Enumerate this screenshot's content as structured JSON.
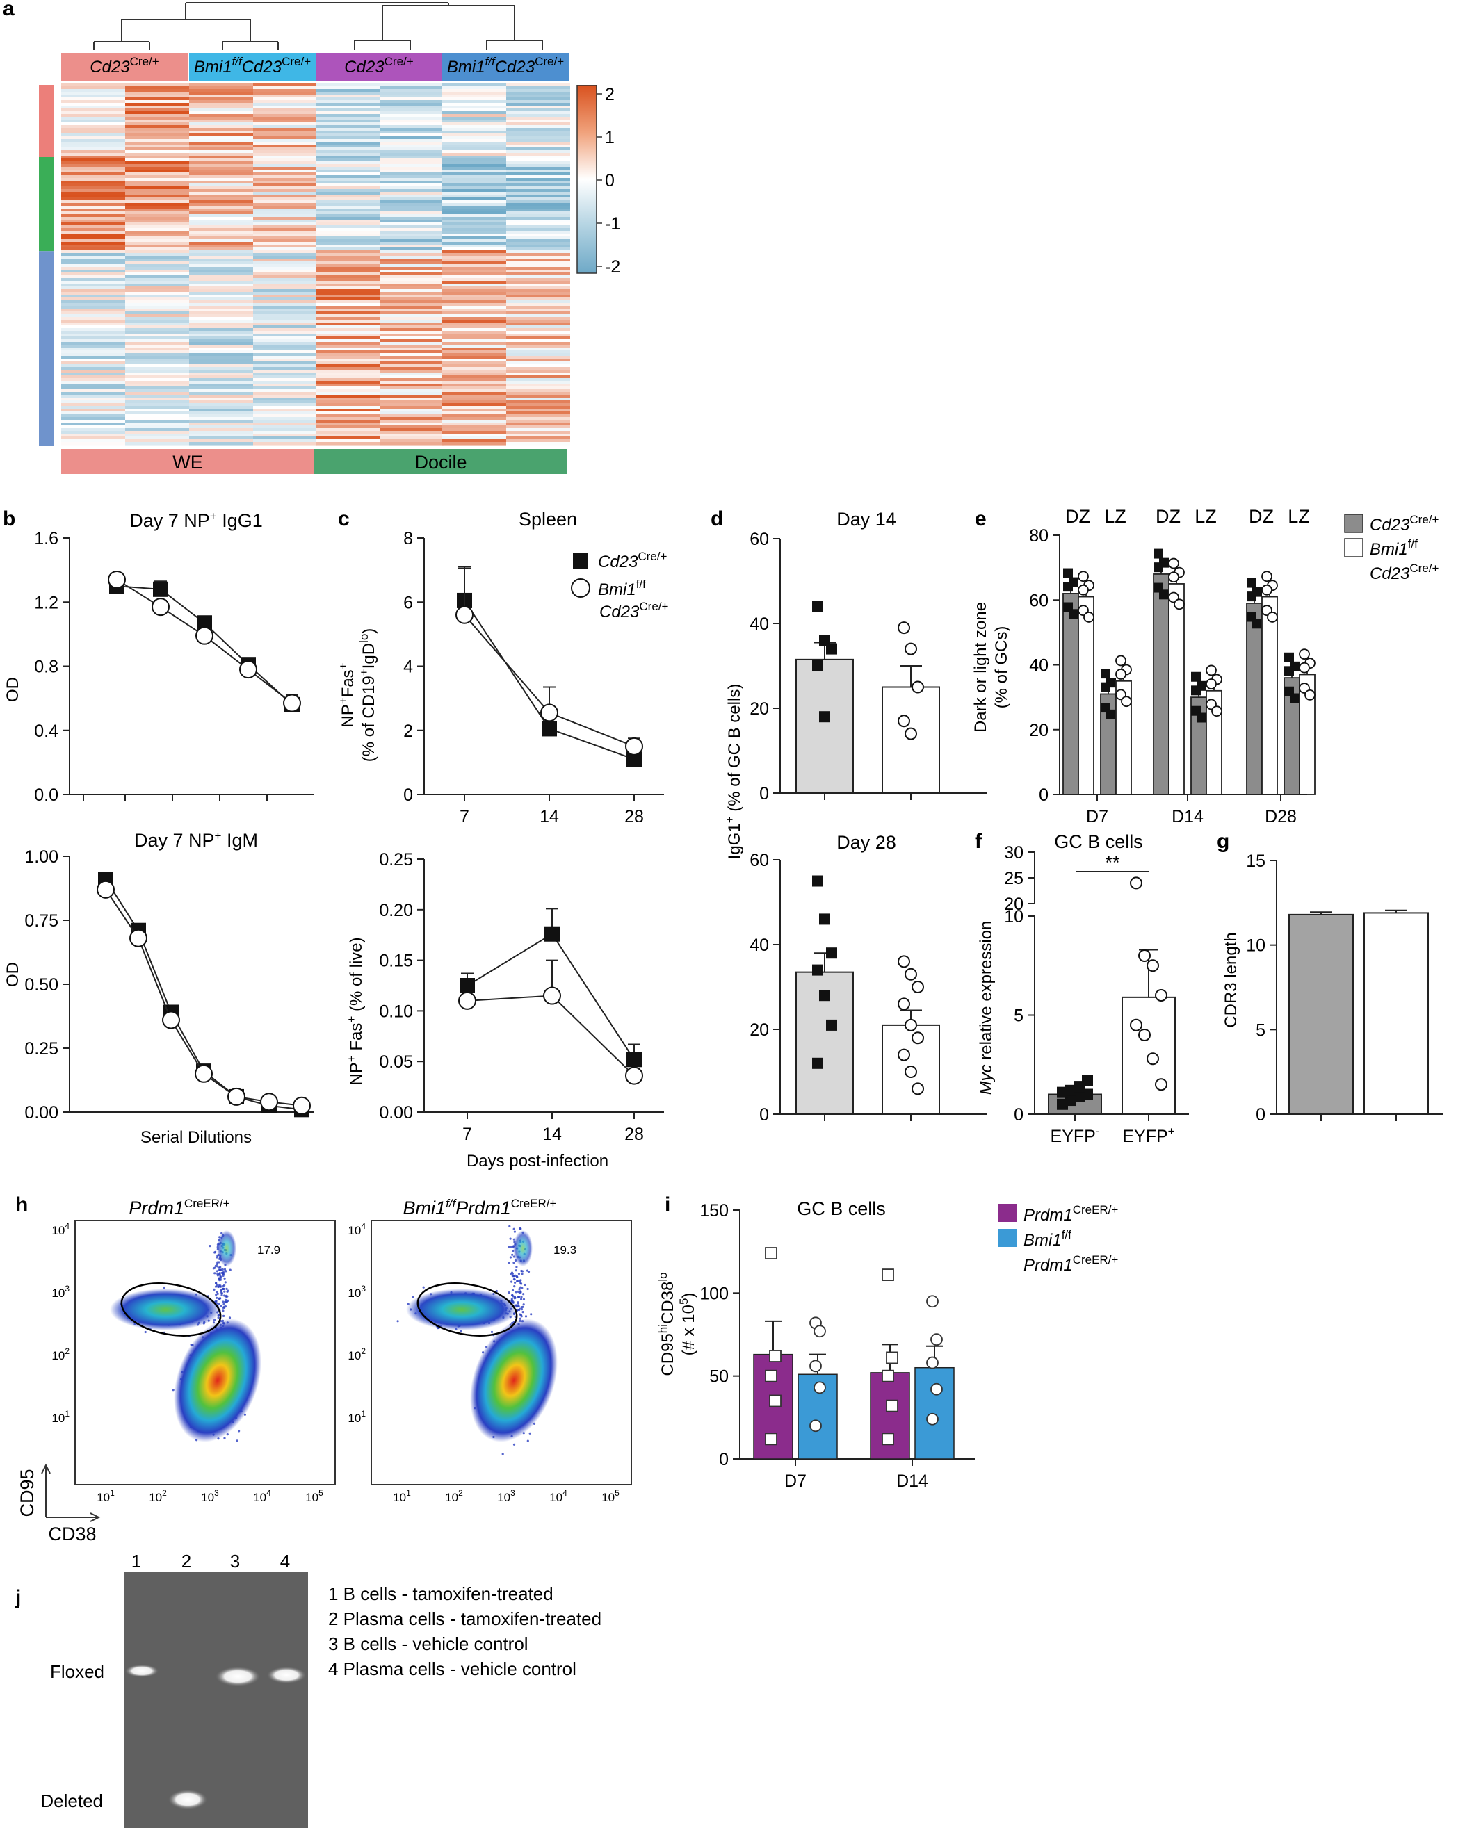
{
  "panels": {
    "a": {
      "letter": "a",
      "groups_top": [
        {
          "gene": "Cd23",
          "sup": "Cre/+",
          "color": "#ec8f8b"
        },
        {
          "gene": "Bmi1",
          "sup1": "f/f",
          "gene2": "Cd23",
          "sup": "Cre/+",
          "color": "#3fb7e6"
        },
        {
          "gene": "Cd23",
          "sup": "Cre/+",
          "color": "#ad54bb"
        },
        {
          "gene": "Bmi1",
          "sup1": "f/f",
          "gene2": "Cd23",
          "sup": "Cre/+",
          "color": "#4d8fd0"
        }
      ],
      "groups_bottom": [
        {
          "label": "WE",
          "color": "#ec8f8b"
        },
        {
          "label": "Docile",
          "color": "#4aa36e"
        }
      ],
      "row_clusters": [
        {
          "color": "#ec7f7a",
          "fraction": 0.2
        },
        {
          "color": "#3aae57",
          "fraction": 0.26
        },
        {
          "color": "#6f93cc",
          "fraction": 0.54
        }
      ],
      "colorbar": {
        "ticks": [
          "2",
          "1",
          "0",
          "-1",
          "-2"
        ],
        "high": "#d9521f",
        "mid": "#ffffff",
        "low": "#6ea9c7"
      }
    },
    "b": {
      "letter": "b",
      "top": {
        "title": "Day 7 NP",
        "title_sup": "+",
        "title_suffix": " IgG1",
        "ylabel": "OD",
        "yticks": [
          "0.0",
          "0.4",
          "0.8",
          "1.2",
          "1.6"
        ],
        "ylim": [
          0,
          1.6
        ]
      },
      "bottom": {
        "title": "Day 7 NP",
        "title_sup": "+",
        "title_suffix": " IgM",
        "ylabel": "OD",
        "yticks": [
          "0.00",
          "0.25",
          "0.50",
          "0.75",
          "1.00"
        ],
        "ylim": [
          0,
          1.0
        ],
        "xlabel": "Serial Dilutions"
      }
    },
    "c": {
      "letter": "c",
      "top": {
        "title": "Spleen",
        "ylabel_main": "NP",
        "ylabel_sup": "+",
        "ylabel_main2": "Fas",
        "ylabel_sup2": "+",
        "ylabel_line2": "(% of CD19",
        "ylabel_line2_sup": "+",
        "ylabel_line2_mid": "IgD",
        "ylabel_line2_sup2": "lo",
        "ylabel_line2_end": ")",
        "yticks": [
          "0",
          "2",
          "4",
          "6",
          "8"
        ],
        "xticks": [
          "7",
          "14",
          "28"
        ],
        "ylim": [
          0,
          8
        ]
      },
      "bottom": {
        "ylabel": "NP",
        "ylabel_sup": "+",
        "ylabel_mid": " Fas",
        "ylabel_sup2": "+",
        "ylabel_end": " (% of live)",
        "yticks": [
          "0.00",
          "0.05",
          "0.10",
          "0.15",
          "0.20",
          "0.25"
        ],
        "xticks": [
          "7",
          "14",
          "28"
        ],
        "xlabel": "Days post-infection",
        "ylim": [
          0,
          0.25
        ]
      },
      "legend": [
        {
          "marker": "square",
          "gene": "Cd23",
          "sup": "Cre/+"
        },
        {
          "marker": "circle",
          "gene": "Bmi1",
          "sup": "f/f",
          "line2_gene": "Cd23",
          "line2_sup": "Cre/+"
        }
      ]
    },
    "d": {
      "letter": "d",
      "top_title": "Day 14",
      "bottom_title": "Day 28",
      "ylabel": "IgG1",
      "ylabel_sup": "+",
      "ylabel_end": " (% of GC B cells)",
      "yticks": [
        "0",
        "20",
        "40",
        "60"
      ],
      "ylim": [
        0,
        60
      ]
    },
    "e": {
      "letter": "e",
      "zones": [
        "DZ",
        "LZ",
        "DZ",
        "LZ",
        "DZ",
        "LZ"
      ],
      "ylabel_line1": "Dark or light zone",
      "ylabel_line2": "(% of GCs)",
      "yticks": [
        "0",
        "20",
        "40",
        "60",
        "80"
      ],
      "xticks": [
        "D7",
        "D14",
        "D28"
      ],
      "ylim": [
        0,
        80
      ],
      "legend": [
        {
          "color": "#8c8c8c",
          "gene": "Cd23",
          "sup": "Cre/+"
        },
        {
          "color": "#ffffff",
          "gene": "Bmi1",
          "sup": "f/f",
          "line2_gene": "Cd23",
          "line2_sup": "Cre/+"
        }
      ]
    },
    "f": {
      "letter": "f",
      "title": "GC B cells",
      "ylabel_gene": "Myc",
      "ylabel_rest": " relative expression",
      "yticks_upper": [
        "20",
        "25",
        "30"
      ],
      "yticks_lower": [
        "0",
        "5",
        "10"
      ],
      "xticks": [
        {
          "label": "EYFP",
          "sup": "-"
        },
        {
          "label": "EYFP",
          "sup": "+"
        }
      ],
      "significance": "**"
    },
    "g": {
      "letter": "g",
      "ylabel": "CDR3 length",
      "yticks": [
        "0",
        "5",
        "10",
        "15"
      ],
      "ylim": [
        0,
        15
      ]
    },
    "h": {
      "letter": "h",
      "plots": [
        {
          "gene": "Prdm1",
          "sup": "CreER/+",
          "gate_value": "17.9"
        },
        {
          "gene": "Bmi1",
          "sup1": "f/f",
          "gene2": "Prdm1",
          "sup": "CreER/+",
          "gate_value": "19.3"
        }
      ],
      "yaxis_label": "CD95",
      "xaxis_label": "CD38",
      "yticks": [
        "10",
        "10",
        "10",
        "10"
      ],
      "ytick_exps": [
        "1",
        "2",
        "3",
        "4"
      ],
      "xtick_exps": [
        "1",
        "2",
        "3",
        "4",
        "5"
      ]
    },
    "i": {
      "letter": "i",
      "title": "GC B cells",
      "ylabel_line1": "CD95",
      "ylabel_line1_sup": "hi",
      "ylabel_line1_mid": "CD38",
      "ylabel_line1_sup2": "lo",
      "ylabel_line2": "(# x 10",
      "ylabel_line2_sup": "5",
      "ylabel_line2_end": ")",
      "yticks": [
        "0",
        "50",
        "100",
        "150"
      ],
      "xticks": [
        "D7",
        "D14"
      ],
      "ylim": [
        0,
        150
      ],
      "legend": [
        {
          "color": "#8b2c8c",
          "gene": "Prdm1",
          "sup": "CreER/+"
        },
        {
          "color": "#3b9ad6",
          "gene": "Bmi1",
          "sup": "f/f",
          "line2_gene": "Prdm1",
          "line2_sup": "CreER/+"
        }
      ]
    },
    "j": {
      "letter": "j",
      "lanes": [
        "1",
        "2",
        "3",
        "4"
      ],
      "band_labels": [
        "Floxed",
        "Deleted"
      ],
      "key": [
        "1 B cells - tamoxifen-treated",
        "2 Plasma cells - tamoxifen-treated",
        "3 B cells - vehicle control",
        "4 Plasma cells - vehicle control"
      ]
    }
  },
  "chart_data": [
    {
      "type": "heatmap",
      "panel": "a",
      "columns": [
        "WE Cd23 Cre/+",
        "WE Bmi1 f/f Cd23 Cre/+",
        "Docile Cd23 Cre/+",
        "Docile Bmi1 f/f Cd23 Cre/+"
      ],
      "samples_per_group": 2,
      "color_range": [
        -2,
        2
      ]
    },
    {
      "type": "line",
      "panel": "b-top",
      "title": "Day 7 NP+ IgG1",
      "xlabel": "",
      "ylabel": "OD",
      "x": [
        1,
        2,
        3,
        4,
        5
      ],
      "ylim": [
        0,
        1.6
      ],
      "series": [
        {
          "name": "Cd23 Cre/+",
          "marker": "square",
          "values": [
            1.3,
            1.28,
            1.07,
            0.81,
            0.56
          ],
          "err": [
            0.05,
            0.05,
            0.04,
            0.04,
            0.06
          ]
        },
        {
          "name": "Bmi1 f/f Cd23 Cre/+",
          "marker": "circle",
          "values": [
            1.34,
            1.17,
            0.99,
            0.78,
            0.57
          ],
          "err": [
            0.04,
            0.04,
            0.04,
            0.03,
            0.05
          ]
        }
      ]
    },
    {
      "type": "line",
      "panel": "b-bottom",
      "title": "Day 7 NP+ IgM",
      "xlabel": "Serial Dilutions",
      "ylabel": "OD",
      "x": [
        1,
        2,
        3,
        4,
        5,
        6,
        7
      ],
      "ylim": [
        0,
        1.0
      ],
      "series": [
        {
          "name": "Cd23 Cre/+",
          "marker": "square",
          "values": [
            0.91,
            0.71,
            0.39,
            0.16,
            0.06,
            0.025,
            0.01
          ]
        },
        {
          "name": "Bmi1 f/f Cd23 Cre/+",
          "marker": "circle",
          "values": [
            0.87,
            0.68,
            0.36,
            0.15,
            0.06,
            0.04,
            0.025
          ]
        }
      ]
    },
    {
      "type": "line",
      "panel": "c-top",
      "title": "Spleen",
      "xlabel": "",
      "ylabel": "NP+Fas+ (% of CD19+IgDlo)",
      "x": [
        7,
        14,
        28
      ],
      "ylim": [
        0,
        8
      ],
      "series": [
        {
          "name": "Cd23 Cre/+",
          "marker": "square",
          "values": [
            6.05,
            2.05,
            1.1
          ],
          "err": [
            1.0,
            0.0,
            0.0
          ]
        },
        {
          "name": "Bmi1 f/f Cd23 Cre/+",
          "marker": "circle",
          "values": [
            5.6,
            2.55,
            1.5
          ],
          "err": [
            1.5,
            0.8,
            0.25
          ]
        }
      ]
    },
    {
      "type": "line",
      "panel": "c-bottom",
      "xlabel": "Days post-infection",
      "ylabel": "NP+ Fas+ (% of live)",
      "x": [
        7,
        14,
        28
      ],
      "ylim": [
        0,
        0.25
      ],
      "series": [
        {
          "name": "Cd23 Cre/+",
          "marker": "square",
          "values": [
            0.125,
            0.176,
            0.052
          ],
          "err": [
            0.012,
            0.025,
            0.015
          ]
        },
        {
          "name": "Bmi1 f/f Cd23 Cre/+",
          "marker": "circle",
          "values": [
            0.11,
            0.115,
            0.036
          ],
          "err": [
            0.0,
            0.035,
            0.0
          ]
        }
      ]
    },
    {
      "type": "bar",
      "panel": "d-top",
      "title": "Day 14",
      "ylabel": "IgG1+ (% of GC B cells)",
      "ylim": [
        0,
        60
      ],
      "categories": [
        "Cd23 Cre/+",
        "Bmi1 f/f Cd23 Cre/+"
      ],
      "values": [
        31.5,
        25.0
      ],
      "err": [
        4.0,
        5.0
      ],
      "points": [
        [
          44,
          36,
          34,
          30,
          18
        ],
        [
          39,
          34,
          25,
          17,
          14
        ]
      ]
    },
    {
      "type": "bar",
      "panel": "d-bottom",
      "title": "Day 28",
      "ylabel": "IgG1+ (% of GC B cells)",
      "ylim": [
        0,
        60
      ],
      "categories": [
        "Cd23 Cre/+",
        "Bmi1 f/f Cd23 Cre/+"
      ],
      "values": [
        33.5,
        21.0
      ],
      "err": [
        4.5,
        3.5
      ],
      "points": [
        [
          55,
          46,
          38,
          34,
          28,
          21,
          12
        ],
        [
          36,
          33,
          30,
          26,
          21,
          18,
          14,
          10,
          6
        ]
      ]
    },
    {
      "type": "bar",
      "panel": "e",
      "ylabel": "Dark or light zone (% of GCs)",
      "ylim": [
        0,
        80
      ],
      "categories": [
        "D7 DZ",
        "D7 LZ",
        "D14 DZ",
        "D14 LZ",
        "D28 DZ",
        "D28 LZ"
      ],
      "series": [
        {
          "name": "Cd23 Cre/+",
          "values": [
            62,
            31,
            68,
            30,
            59,
            36
          ],
          "err": [
            3,
            3,
            3,
            3,
            3,
            3
          ]
        },
        {
          "name": "Bmi1 f/f Cd23 Cre/+",
          "values": [
            61,
            35,
            65,
            32,
            61,
            37
          ],
          "err": [
            3,
            3,
            3,
            2,
            3,
            3
          ]
        }
      ]
    },
    {
      "type": "bar",
      "panel": "f",
      "title": "GC B cells",
      "ylabel": "Myc relative expression",
      "categories": [
        "EYFP-",
        "EYFP+"
      ],
      "values": [
        1.0,
        5.9
      ],
      "err": [
        0.3,
        2.4
      ],
      "points": [
        [
          0.5,
          0.7,
          0.9,
          1.0,
          1.1,
          1.2,
          1.4,
          1.7
        ],
        [
          24,
          8,
          7.5,
          6,
          4.5,
          4,
          2.8,
          1.5
        ]
      ]
    },
    {
      "type": "bar",
      "panel": "g",
      "ylabel": "CDR3 length",
      "ylim": [
        0,
        15
      ],
      "categories": [
        "Cd23 Cre/+",
        "Bmi1 f/f Cd23 Cre/+"
      ],
      "values": [
        11.8,
        11.9
      ],
      "err": [
        0.15,
        0.15
      ]
    },
    {
      "type": "bar",
      "panel": "i",
      "title": "GC B cells",
      "ylabel": "CD95hi CD38lo (# x 10^5)",
      "ylim": [
        0,
        150
      ],
      "categories": [
        "D7",
        "D14"
      ],
      "series": [
        {
          "name": "Prdm1 CreER/+",
          "values": [
            63,
            52
          ],
          "err": [
            20,
            17
          ],
          "points": [
            [
              124,
              62,
              50,
              35,
              12
            ],
            [
              111,
              61,
              50,
              32,
              12
            ]
          ]
        },
        {
          "name": "Bmi1 f/f Prdm1 CreER/+",
          "values": [
            51,
            55
          ],
          "err": [
            12,
            13
          ],
          "points": [
            [
              82,
              77,
              56,
              43,
              20
            ],
            [
              95,
              72,
              58,
              42,
              24
            ]
          ]
        }
      ]
    }
  ]
}
